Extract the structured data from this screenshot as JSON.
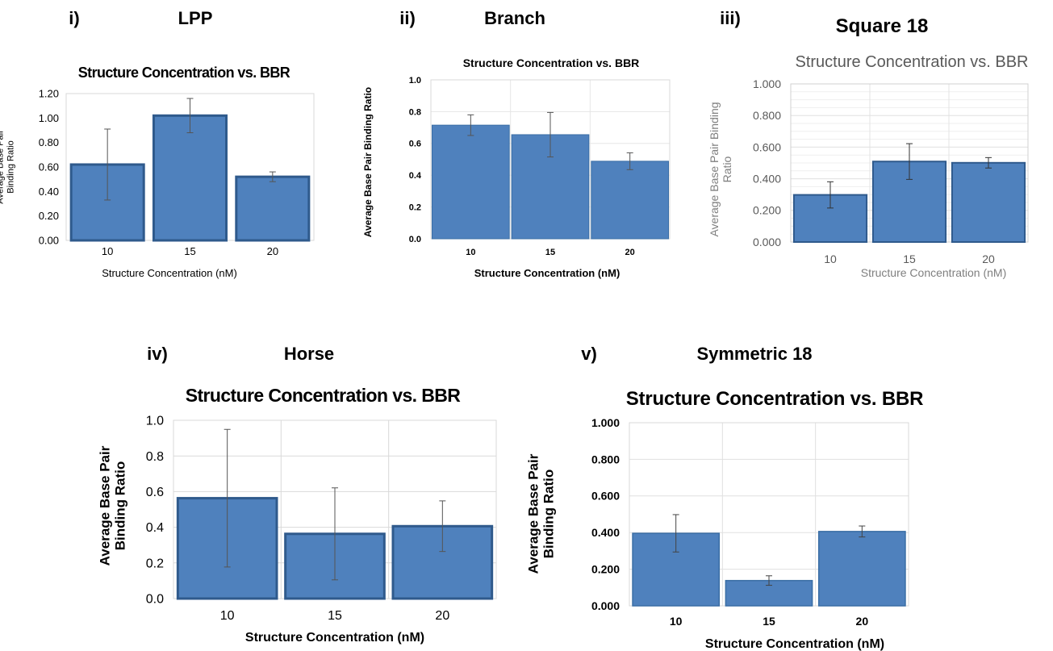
{
  "chart_data": [
    {
      "panel_label": "i)",
      "structure_name": "LPP",
      "type": "bar",
      "title": "Structure Concentration vs. BBR",
      "xlabel": "Structure Concentration  (nM)",
      "ylabel": [
        "Average  Base Pair",
        "Binding Ratio"
      ],
      "categories": [
        "10",
        "15",
        "20"
      ],
      "values": [
        0.62,
        1.02,
        0.52
      ],
      "errors": [
        0.29,
        0.14,
        0.04
      ],
      "ylim": [
        0,
        1.2
      ],
      "yticks": [
        "0.00",
        "0.20",
        "0.40",
        "0.60",
        "0.80",
        "1.00",
        "1.20"
      ],
      "grid": false,
      "bar_color": "#4f81bd",
      "bar_edge": "#2f5a8c"
    },
    {
      "panel_label": "ii)",
      "structure_name": "Branch",
      "type": "bar",
      "title": "Structure Concentration vs. BBR",
      "xlabel": "Structure Concentration (nM)",
      "ylabel": [
        "Average Base Pair Binding Ratio"
      ],
      "categories": [
        "10",
        "15",
        "20"
      ],
      "values": [
        0.715,
        0.655,
        0.488
      ],
      "errors": [
        0.065,
        0.14,
        0.053
      ],
      "ylim": [
        0,
        1.0
      ],
      "yticks": [
        "0.0",
        "0.2",
        "0.4",
        "0.6",
        "0.8",
        "1.0"
      ],
      "grid": true,
      "bar_color": "#4f81bd",
      "bar_edge": "#3a6ea5"
    },
    {
      "panel_label": "iii)",
      "structure_name": "Square 18",
      "type": "bar",
      "title": "Structure Concentration vs. BBR",
      "xlabel": "Structure Concentration  (nM)",
      "ylabel": [
        "Average  Base Pair Binding",
        "Ratio"
      ],
      "categories": [
        "10",
        "15",
        "20"
      ],
      "values": [
        0.298,
        0.509,
        0.501
      ],
      "errors": [
        0.083,
        0.113,
        0.033
      ],
      "ylim": [
        0,
        1.0
      ],
      "yticks": [
        "0.000",
        "0.200",
        "0.400",
        "0.600",
        "0.800",
        "1.000"
      ],
      "grid": true,
      "bar_color": "#4f81bd",
      "bar_edge": "#2f5a8c"
    },
    {
      "panel_label": "iv)",
      "structure_name": "Horse",
      "type": "bar",
      "title": "Structure Concentration vs. BBR",
      "xlabel": "Structure  Concentration  (nM)",
      "ylabel": [
        "Average Base Pair",
        "Binding Ratio"
      ],
      "categories": [
        "10",
        "15",
        "20"
      ],
      "values": [
        0.563,
        0.363,
        0.406
      ],
      "errors": [
        0.386,
        0.258,
        0.142
      ],
      "ylim": [
        0,
        1.0
      ],
      "yticks": [
        "0.0",
        "0.2",
        "0.4",
        "0.6",
        "0.8",
        "1.0"
      ],
      "grid": true,
      "bar_color": "#4f81bd",
      "bar_edge": "#2f5a8c"
    },
    {
      "panel_label": "v)",
      "structure_name": "Symmetric 18",
      "type": "bar",
      "title": "Structure Concentration vs. BBR",
      "xlabel": "Structure Concentration (nM)",
      "ylabel": [
        "Average Base Pair",
        "Binding Ratio"
      ],
      "categories": [
        "10",
        "15",
        "20"
      ],
      "values": [
        0.396,
        0.138,
        0.406
      ],
      "errors": [
        0.102,
        0.026,
        0.03
      ],
      "ylim": [
        0,
        1.0
      ],
      "yticks": [
        "0.000",
        "0.200",
        "0.400",
        "0.600",
        "0.800",
        "1.000"
      ],
      "grid": true,
      "bar_color": "#4f81bd",
      "bar_edge": "#3a6ea5"
    }
  ]
}
